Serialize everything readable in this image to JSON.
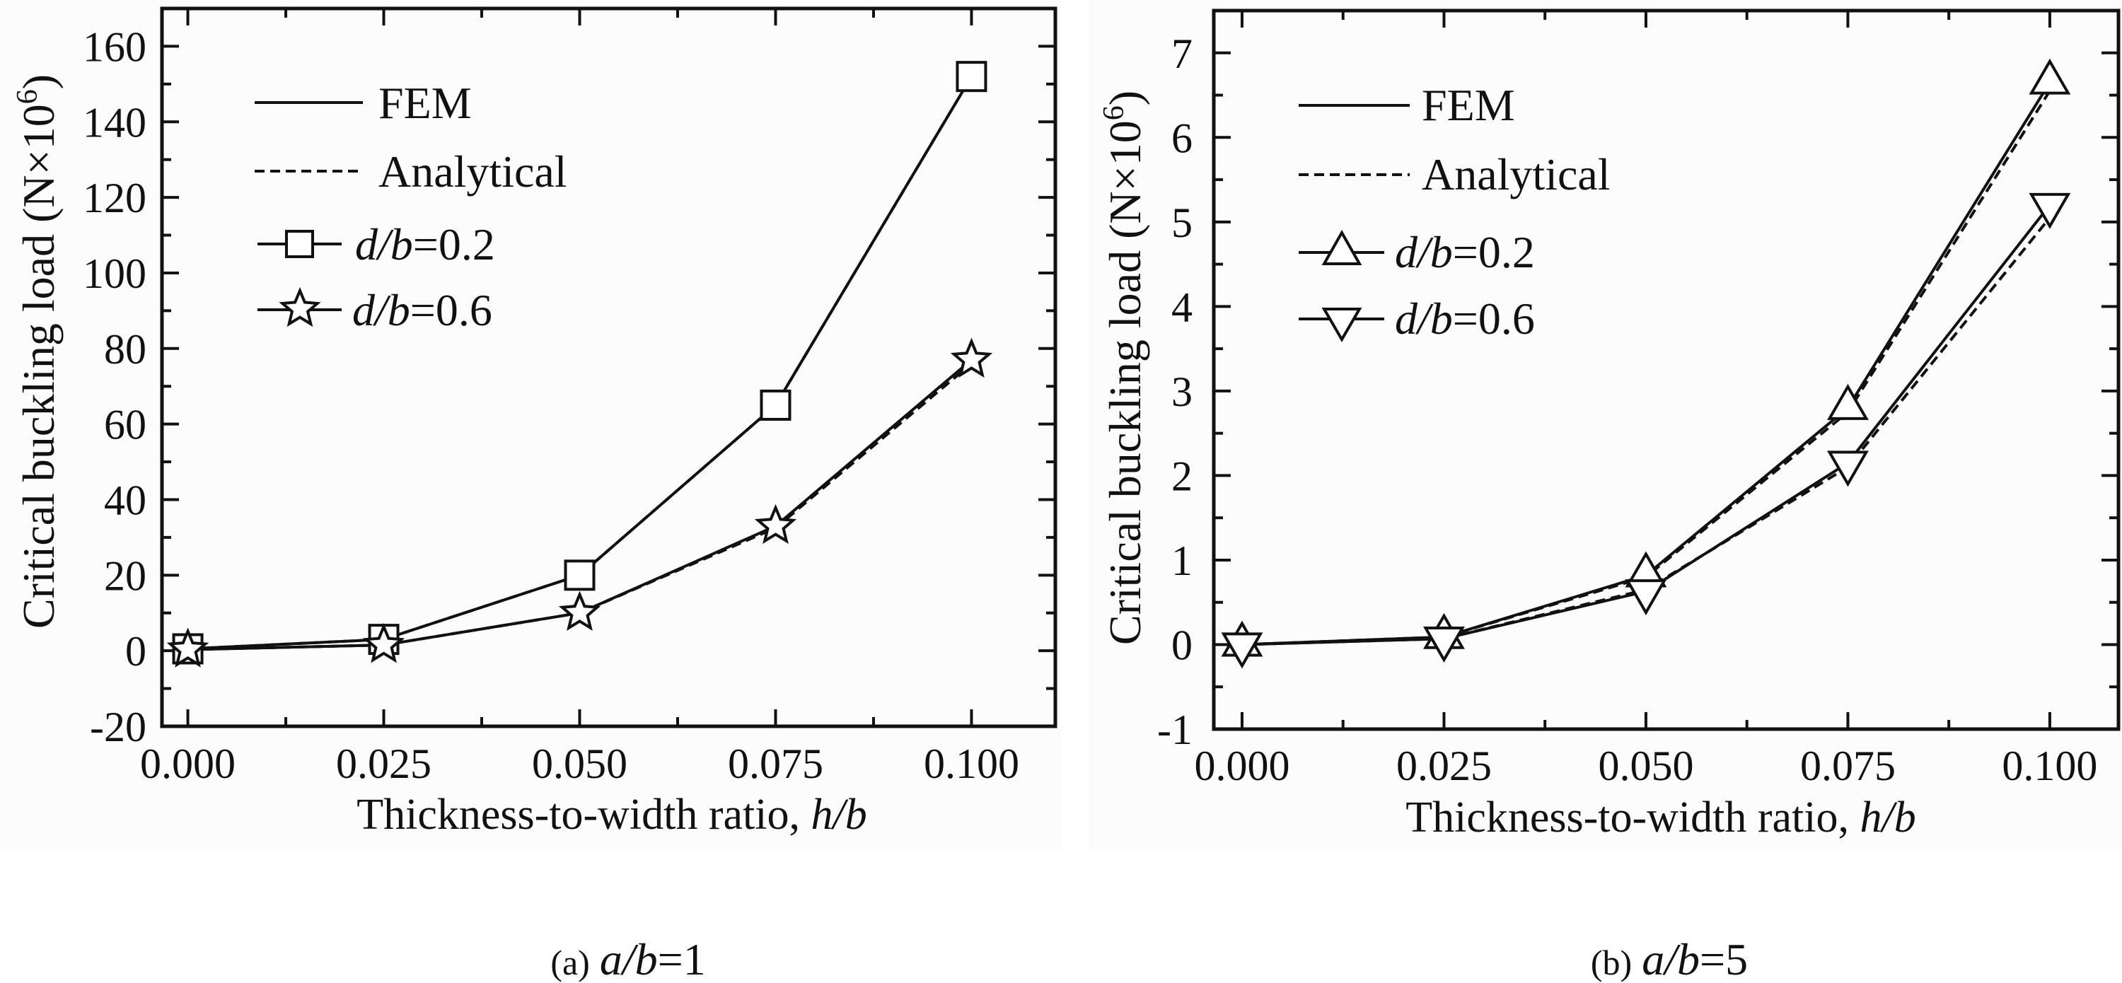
{
  "chart_data": [
    {
      "type": "line",
      "panel": "a",
      "caption_prefix": "(a)",
      "caption_var": "a/b",
      "caption_value": "=1",
      "xlabel_text": "Thickness-to-width ratio, ",
      "xlabel_var": "h/b",
      "ylabel": "Critical buckling load (N×10",
      "ylabel_sup": "6",
      "ylabel_close": ")",
      "x": [
        0.0,
        0.025,
        0.05,
        0.075,
        0.1
      ],
      "xlim": [
        -0.0033,
        0.1107
      ],
      "ylim": [
        -20,
        170
      ],
      "xticks": [
        0.0,
        0.025,
        0.05,
        0.075,
        0.1
      ],
      "xtick_labels": [
        "0.000",
        "0.025",
        "0.050",
        "0.075",
        "0.100"
      ],
      "yticks": [
        -20,
        0,
        20,
        40,
        60,
        80,
        100,
        120,
        140,
        160
      ],
      "ytick_labels": [
        "-20",
        "0",
        "20",
        "40",
        "60",
        "80",
        "100",
        "120",
        "140",
        "160"
      ],
      "legend_position": "top-left",
      "legend": {
        "fem": "FEM",
        "analytical": "Analytical",
        "s1_var": "d/b",
        "s1_val": "=0.2",
        "s2_var": "d/b",
        "s2_val": "=0.6"
      },
      "series": [
        {
          "name": "d/b=0.2 FEM",
          "marker": "square",
          "style": "solid",
          "values": [
            0.5,
            3,
            20,
            65,
            152
          ]
        },
        {
          "name": "d/b=0.2 Analytical",
          "marker": "none",
          "style": "dashed",
          "values": [
            0.5,
            3,
            20,
            65,
            152
          ]
        },
        {
          "name": "d/b=0.6 FEM",
          "marker": "star",
          "style": "solid",
          "values": [
            0.3,
            1.5,
            10,
            33,
            77
          ]
        },
        {
          "name": "d/b=0.6 Analytical",
          "marker": "none",
          "style": "dashed",
          "values": [
            0.3,
            1.5,
            10,
            32.5,
            76
          ]
        }
      ]
    },
    {
      "type": "line",
      "panel": "b",
      "caption_prefix": "(b)",
      "caption_var": "a/b",
      "caption_value": "=5",
      "xlabel_text": "Thickness-to-width ratio, ",
      "xlabel_var": "h/b",
      "ylabel": "Critical buckling load (N×10",
      "ylabel_sup": "6",
      "ylabel_close": ")",
      "x": [
        0.0,
        0.025,
        0.05,
        0.075,
        0.1
      ],
      "xlim": [
        -0.0035,
        0.1085
      ],
      "ylim": [
        -1,
        7.5
      ],
      "xticks": [
        0.0,
        0.025,
        0.05,
        0.075,
        0.1
      ],
      "xtick_labels": [
        "0.000",
        "0.025",
        "0.050",
        "0.075",
        "0.100"
      ],
      "yticks": [
        -1,
        0,
        1,
        2,
        3,
        4,
        5,
        6,
        7
      ],
      "ytick_labels": [
        "-1",
        "0",
        "1",
        "2",
        "3",
        "4",
        "5",
        "6",
        "7"
      ],
      "legend_position": "top-left",
      "legend": {
        "fem": "FEM",
        "analytical": "Analytical",
        "s1_var": "d/b",
        "s1_val": "=0.2",
        "s2_var": "d/b",
        "s2_val": "=0.6"
      },
      "series": [
        {
          "name": "d/b=0.2 FEM",
          "marker": "triangle-up",
          "style": "solid",
          "values": [
            0.0,
            0.09,
            0.82,
            2.8,
            6.65
          ]
        },
        {
          "name": "d/b=0.2 Analytical",
          "marker": "none",
          "style": "dashed",
          "values": [
            0.0,
            0.09,
            0.8,
            2.75,
            6.55
          ]
        },
        {
          "name": "d/b=0.6 FEM",
          "marker": "triangle-down",
          "style": "solid",
          "values": [
            0.0,
            0.07,
            0.63,
            2.15,
            5.2
          ]
        },
        {
          "name": "d/b=0.6 Analytical",
          "marker": "none",
          "style": "dashed",
          "values": [
            0.0,
            0.07,
            0.65,
            2.1,
            5.05
          ]
        }
      ]
    }
  ]
}
